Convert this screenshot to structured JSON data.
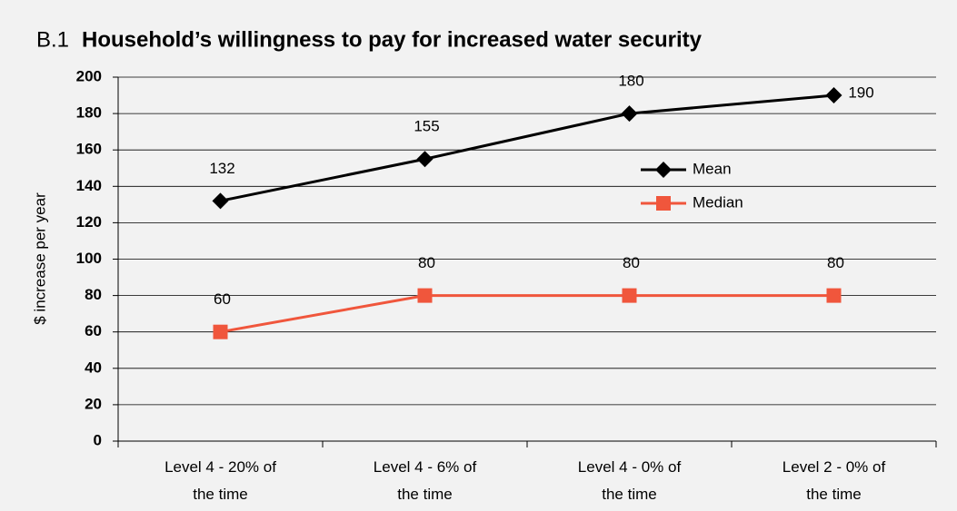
{
  "chart_data": {
    "type": "line",
    "title_prefix": "B.1",
    "title": "Household’s willingness to pay for increased water security",
    "y_label": "$ increase per year",
    "categories": [
      "Level 4 - 20% of the time",
      "Level 4 - 6% of the time",
      "Level 4 - 0% of the time",
      "Level 2 - 0% of the time"
    ],
    "series": [
      {
        "name": "Mean",
        "color": "#000000",
        "marker": "diamond",
        "values": [
          132,
          155,
          180,
          190
        ]
      },
      {
        "name": "Median",
        "color": "#f0563c",
        "marker": "square",
        "values": [
          60,
          80,
          80,
          80
        ]
      }
    ],
    "ylim": [
      0,
      200
    ],
    "yticks": [
      0,
      20,
      40,
      60,
      80,
      100,
      120,
      140,
      160,
      180,
      200
    ],
    "grid": true
  }
}
